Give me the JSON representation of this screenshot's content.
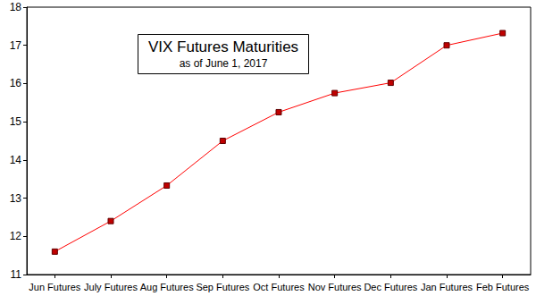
{
  "chart_data": {
    "type": "line",
    "title": "VIX Futures Maturities",
    "subtitle": "as of June 1, 2017",
    "categories": [
      "Jun Futures",
      "July Futures",
      "Aug Futures",
      "Sep Futures",
      "Oct Futures",
      "Nov Futures",
      "Dec Futures",
      "Jan Futures",
      "Feb Futures"
    ],
    "values": [
      11.6,
      12.4,
      13.33,
      14.5,
      15.25,
      15.75,
      16.02,
      17.0,
      17.32
    ],
    "color": "#ff0000",
    "marker": "square",
    "ylim": [
      11,
      18
    ],
    "yticks": [
      11,
      12,
      13,
      14,
      15,
      16,
      17,
      18
    ],
    "grid": false
  }
}
